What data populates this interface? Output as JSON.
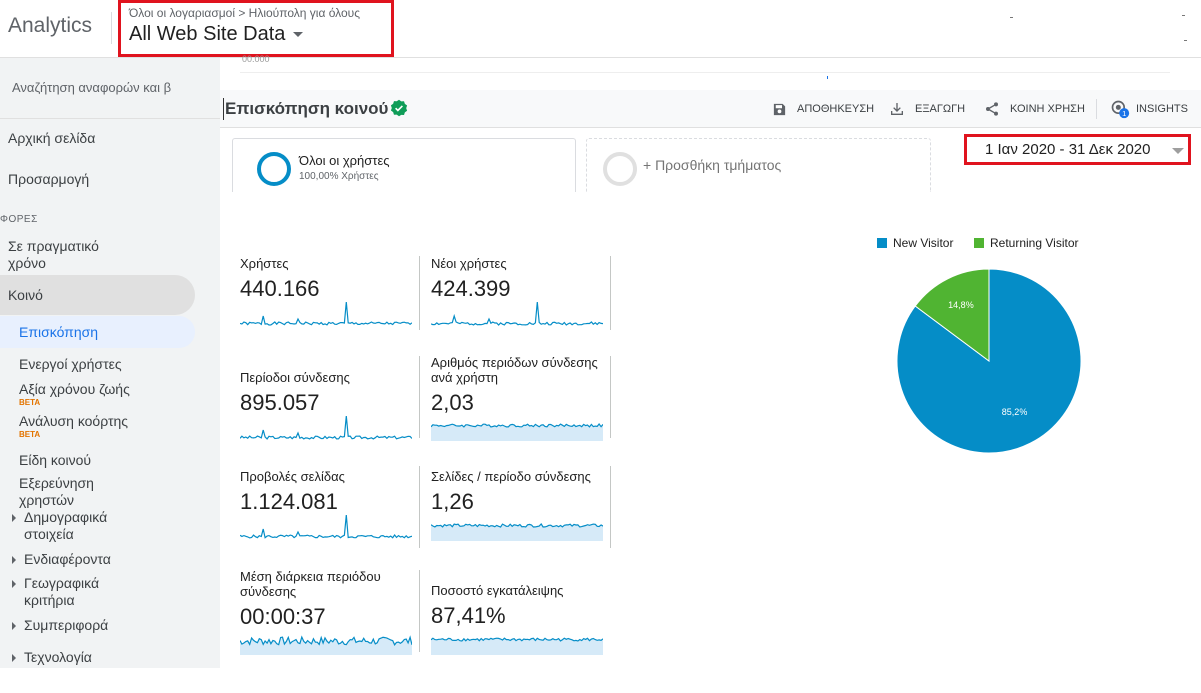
{
  "app": {
    "title": "Analytics"
  },
  "account": {
    "breadcrumb": "Όλοι οι λογαριασμοί > Ηλιούπολη για όλους",
    "property": "All Web Site Data"
  },
  "sidebar": {
    "search_placeholder": "Αναζήτηση αναφορών και β",
    "home": "Αρχική σελίδα",
    "customization": "Προσαρμογή",
    "section_label": "ΦΟΡΕΣ",
    "realtime": "Σε πραγματικό χρόνο",
    "audience": "Κοινό",
    "items": [
      {
        "label": "Επισκόπηση"
      },
      {
        "label": "Ενεργοί χρήστες"
      },
      {
        "label": "Αξία χρόνου ζωής",
        "badge": "BETA"
      },
      {
        "label": "Ανάλυση κοόρτης",
        "badge": "BETA"
      },
      {
        "label": "Είδη κοινού"
      },
      {
        "label": "Εξερεύνηση χρηστών"
      },
      {
        "label": "Δημογραφικά στοιχεία"
      },
      {
        "label": "Ενδιαφέροντα"
      },
      {
        "label": "Γεωγραφικά κριτήρια"
      },
      {
        "label": "Συμπεριφορά"
      },
      {
        "label": "Τεχνολογία"
      }
    ]
  },
  "report": {
    "ghost_axis_label": "00.000",
    "title": "Επισκόπηση κοινού",
    "toolbar": {
      "save": "ΑΠΟΘΗΚΕΥΣΗ",
      "export": "ΕΞΑΓΩΓΗ",
      "share": "ΚΟΙΝΗ ΧΡΗΣΗ",
      "insights": "INSIGHTS",
      "insights_badge": "1"
    },
    "segments": {
      "active_name": "Όλοι οι χρήστες",
      "active_sub": "100,00% Χρήστες",
      "add": "+ Προσθήκη τμήματος"
    },
    "date_range": "1 Ιαν 2020 - 31 Δεκ 2020"
  },
  "metrics": [
    {
      "label": "Χρήστες",
      "value": "440.166"
    },
    {
      "label": "Νέοι χρήστες",
      "value": "424.399"
    },
    {
      "label": "Περίοδοι σύνδεσης",
      "value": "895.057"
    },
    {
      "label": "Αριθμός περιόδων σύνδεσης ανά χρήστη",
      "value": "2,03"
    },
    {
      "label": "Προβολές σελίδας",
      "value": "1.124.081"
    },
    {
      "label": "Σελίδες / περίοδο σύνδεσης",
      "value": "1,26"
    },
    {
      "label": "Μέση διάρκεια περιόδου σύνδεσης",
      "value": "00:00:37"
    },
    {
      "label": "Ποσοστό εγκατάλειψης",
      "value": "87,41%"
    }
  ],
  "colors": {
    "new_visitor": "#058dc7",
    "returning_visitor": "#50b432",
    "accent": "#1a73e8",
    "highlight": "#e0131e"
  },
  "chart_data": {
    "type": "pie",
    "series": [
      {
        "name": "New Visitor",
        "value": 85.2,
        "label": "85,2%"
      },
      {
        "name": "Returning Visitor",
        "value": 14.8,
        "label": "14,8%"
      }
    ],
    "legend_position": "top"
  }
}
